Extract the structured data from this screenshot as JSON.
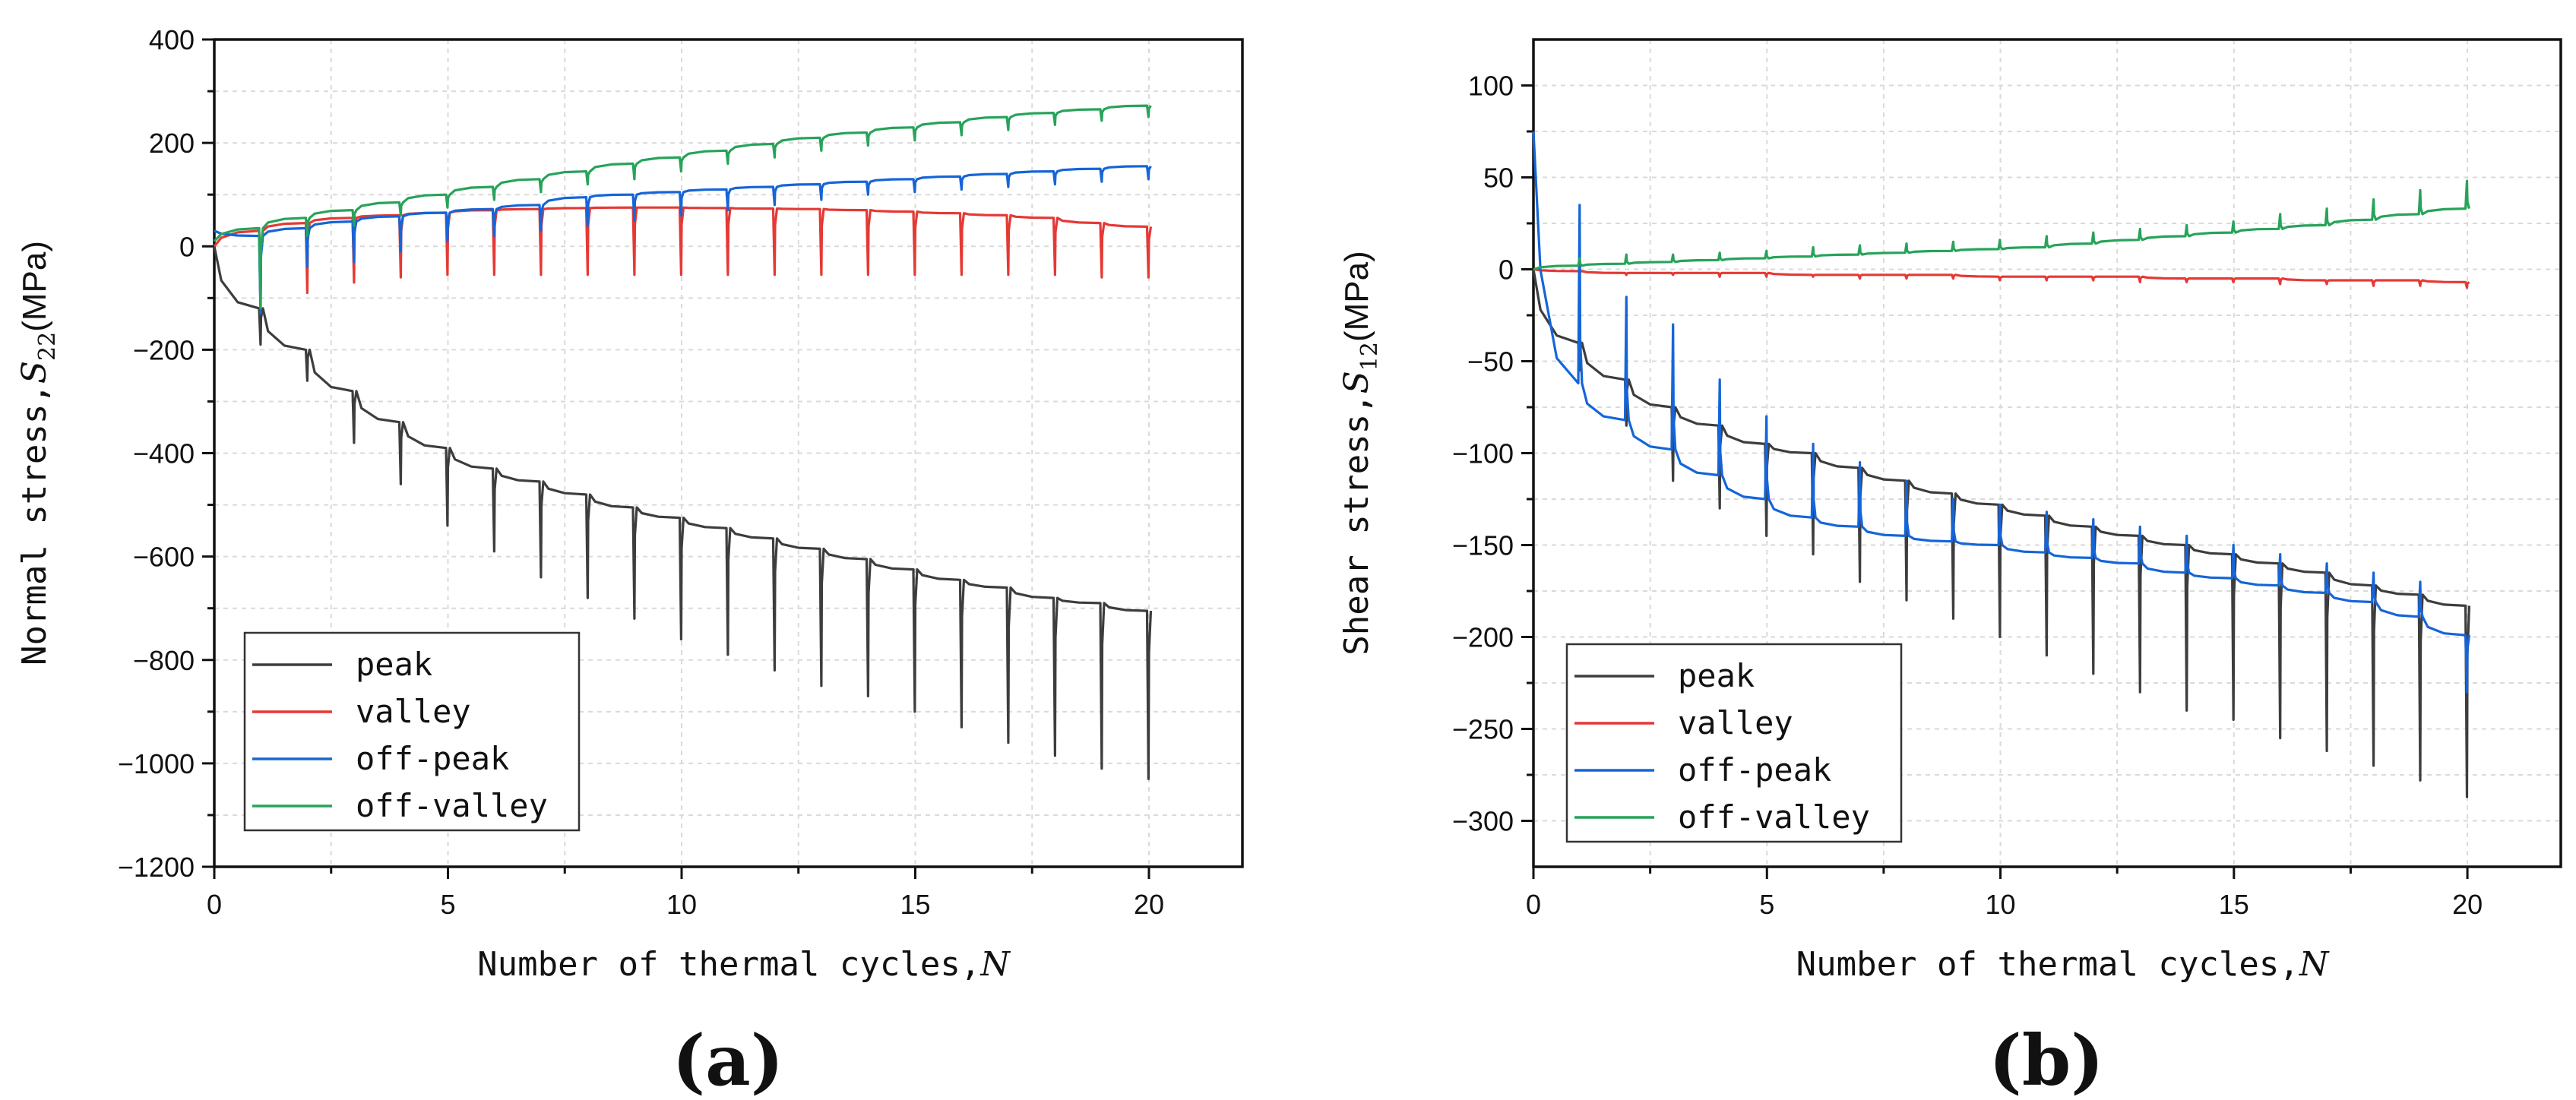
{
  "chart_data": [
    {
      "type": "line",
      "panel": "(a)",
      "xlabel": "Number of thermal cycles,",
      "xlabel_var": "N",
      "ylabel_prefix": "Normal stress,",
      "ylabel_var": "S",
      "ylabel_sub": "22",
      "ylabel_unit": "(MPa)",
      "xlim": [
        0,
        22
      ],
      "ylim": [
        -1200,
        400
      ],
      "xticks": [
        0,
        5,
        10,
        15,
        20
      ],
      "yticks": [
        -1200,
        -1000,
        -800,
        -600,
        -400,
        -200,
        0,
        200,
        400
      ],
      "ytick_labels": [
        "−1200",
        "−1000",
        "−800",
        "−600",
        "−400",
        "−200",
        "0",
        "200",
        "400"
      ],
      "grid": true,
      "legend_position": "bottom-left",
      "series": [
        {
          "name": "peak",
          "color": "#3d3d3d",
          "start": 0,
          "end": [
            -100,
            -120,
            -200,
            -280,
            -340,
            -390,
            -430,
            -455,
            -480,
            -505,
            -525,
            -545,
            -565,
            -585,
            -605,
            -625,
            -645,
            -660,
            -680,
            -690,
            -705
          ],
          "dips": [
            -190,
            -260,
            -380,
            -460,
            -540,
            -590,
            -640,
            -680,
            -720,
            -760,
            -790,
            -820,
            -850,
            -870,
            -900,
            -930,
            -960,
            -985,
            -1010,
            -1030
          ]
        },
        {
          "name": "valley",
          "color": "#e53935",
          "start": 0,
          "end": [
            10,
            30,
            45,
            55,
            60,
            65,
            70,
            72,
            74,
            75,
            75,
            74,
            73,
            72,
            70,
            67,
            64,
            60,
            55,
            45,
            38
          ],
          "dips": [
            -100,
            -90,
            -70,
            -60,
            -55,
            -55,
            -55,
            -55,
            -55,
            -55,
            -55,
            -55,
            -55,
            -55,
            -55,
            -55,
            -55,
            -55,
            -60,
            -60
          ]
        },
        {
          "name": "off-peak",
          "color": "#1565d8",
          "start": 30,
          "end": [
            5,
            20,
            35,
            48,
            58,
            65,
            72,
            80,
            95,
            100,
            105,
            110,
            115,
            120,
            125,
            130,
            135,
            140,
            145,
            150,
            155
          ],
          "dips": [
            -130,
            -40,
            -30,
            -10,
            10,
            20,
            30,
            40,
            50,
            60,
            70,
            80,
            90,
            100,
            105,
            110,
            115,
            120,
            125,
            130
          ]
        },
        {
          "name": "off-valley",
          "color": "#27a35a",
          "start": 10,
          "end": [
            15,
            35,
            55,
            70,
            85,
            100,
            115,
            130,
            145,
            160,
            172,
            185,
            198,
            210,
            220,
            230,
            240,
            250,
            258,
            265,
            272
          ],
          "dips": [
            -120,
            20,
            40,
            60,
            75,
            90,
            105,
            120,
            130,
            145,
            160,
            172,
            185,
            195,
            205,
            215,
            225,
            235,
            243,
            250
          ]
        }
      ]
    },
    {
      "type": "line",
      "panel": "(b)",
      "xlabel": "Number of thermal cycles,",
      "xlabel_var": "N",
      "ylabel_prefix": "Shear stress,",
      "ylabel_var": "S",
      "ylabel_sub": "12",
      "ylabel_unit": "(MPa)",
      "xlim": [
        0,
        22
      ],
      "ylim": [
        -325,
        125
      ],
      "xticks": [
        0,
        5,
        10,
        15,
        20
      ],
      "yticks": [
        -300,
        -250,
        -200,
        -150,
        -100,
        -50,
        0,
        50,
        100
      ],
      "ytick_labels": [
        "−300",
        "−250",
        "−200",
        "−150",
        "−100",
        "−50",
        "0",
        "50",
        "100"
      ],
      "grid": true,
      "legend_position": "bottom-left",
      "series": [
        {
          "name": "peak",
          "color": "#3d3d3d",
          "start": 0,
          "end": [
            -20,
            -40,
            -60,
            -75,
            -85,
            -95,
            -100,
            -108,
            -115,
            -122,
            -128,
            -134,
            -140,
            -145,
            -150,
            -155,
            -160,
            -165,
            -172,
            -177,
            -183
          ],
          "dips": [
            -55,
            -85,
            -115,
            -130,
            -145,
            -155,
            -170,
            -180,
            -190,
            -200,
            -210,
            -220,
            -230,
            -240,
            -245,
            -255,
            -262,
            -270,
            -278,
            -287
          ]
        },
        {
          "name": "valley",
          "color": "#e53935",
          "start": 0,
          "end": [
            -1,
            -1,
            -2,
            -2,
            -2,
            -2,
            -3,
            -3,
            -3,
            -3,
            -4,
            -4,
            -4,
            -4,
            -5,
            -5,
            -5,
            -6,
            -6,
            -6,
            -7
          ],
          "dips": [
            -2,
            -3,
            -3,
            -4,
            -4,
            -4,
            -5,
            -5,
            -5,
            -6,
            -6,
            -6,
            -7,
            -7,
            -7,
            -8,
            -8,
            -9,
            -9,
            -10
          ]
        },
        {
          "name": "off-peak",
          "color": "#1565d8",
          "start": 75,
          "end": [
            -37,
            -62,
            -82,
            -98,
            -112,
            -125,
            -135,
            -140,
            -145,
            -148,
            -150,
            -154,
            -157,
            -160,
            -165,
            -168,
            -172,
            -176,
            -181,
            -189,
            -199
          ],
          "dips": [
            35,
            -15,
            -30,
            -60,
            -80,
            -95,
            -105,
            -115,
            -125,
            -128,
            -132,
            -136,
            -140,
            -145,
            -150,
            -155,
            -160,
            -165,
            -170,
            -230
          ]
        },
        {
          "name": "off-valley",
          "color": "#27a35a",
          "start": 0,
          "end": [
            1,
            2,
            3,
            4,
            5,
            6,
            7,
            8,
            9,
            10,
            11,
            12,
            14,
            16,
            18,
            20,
            22,
            24,
            27,
            30,
            33
          ],
          "dips": [
            6,
            8,
            8,
            9,
            10,
            12,
            13,
            14,
            15,
            16,
            18,
            20,
            22,
            24,
            26,
            30,
            33,
            38,
            43,
            48
          ]
        }
      ]
    }
  ]
}
